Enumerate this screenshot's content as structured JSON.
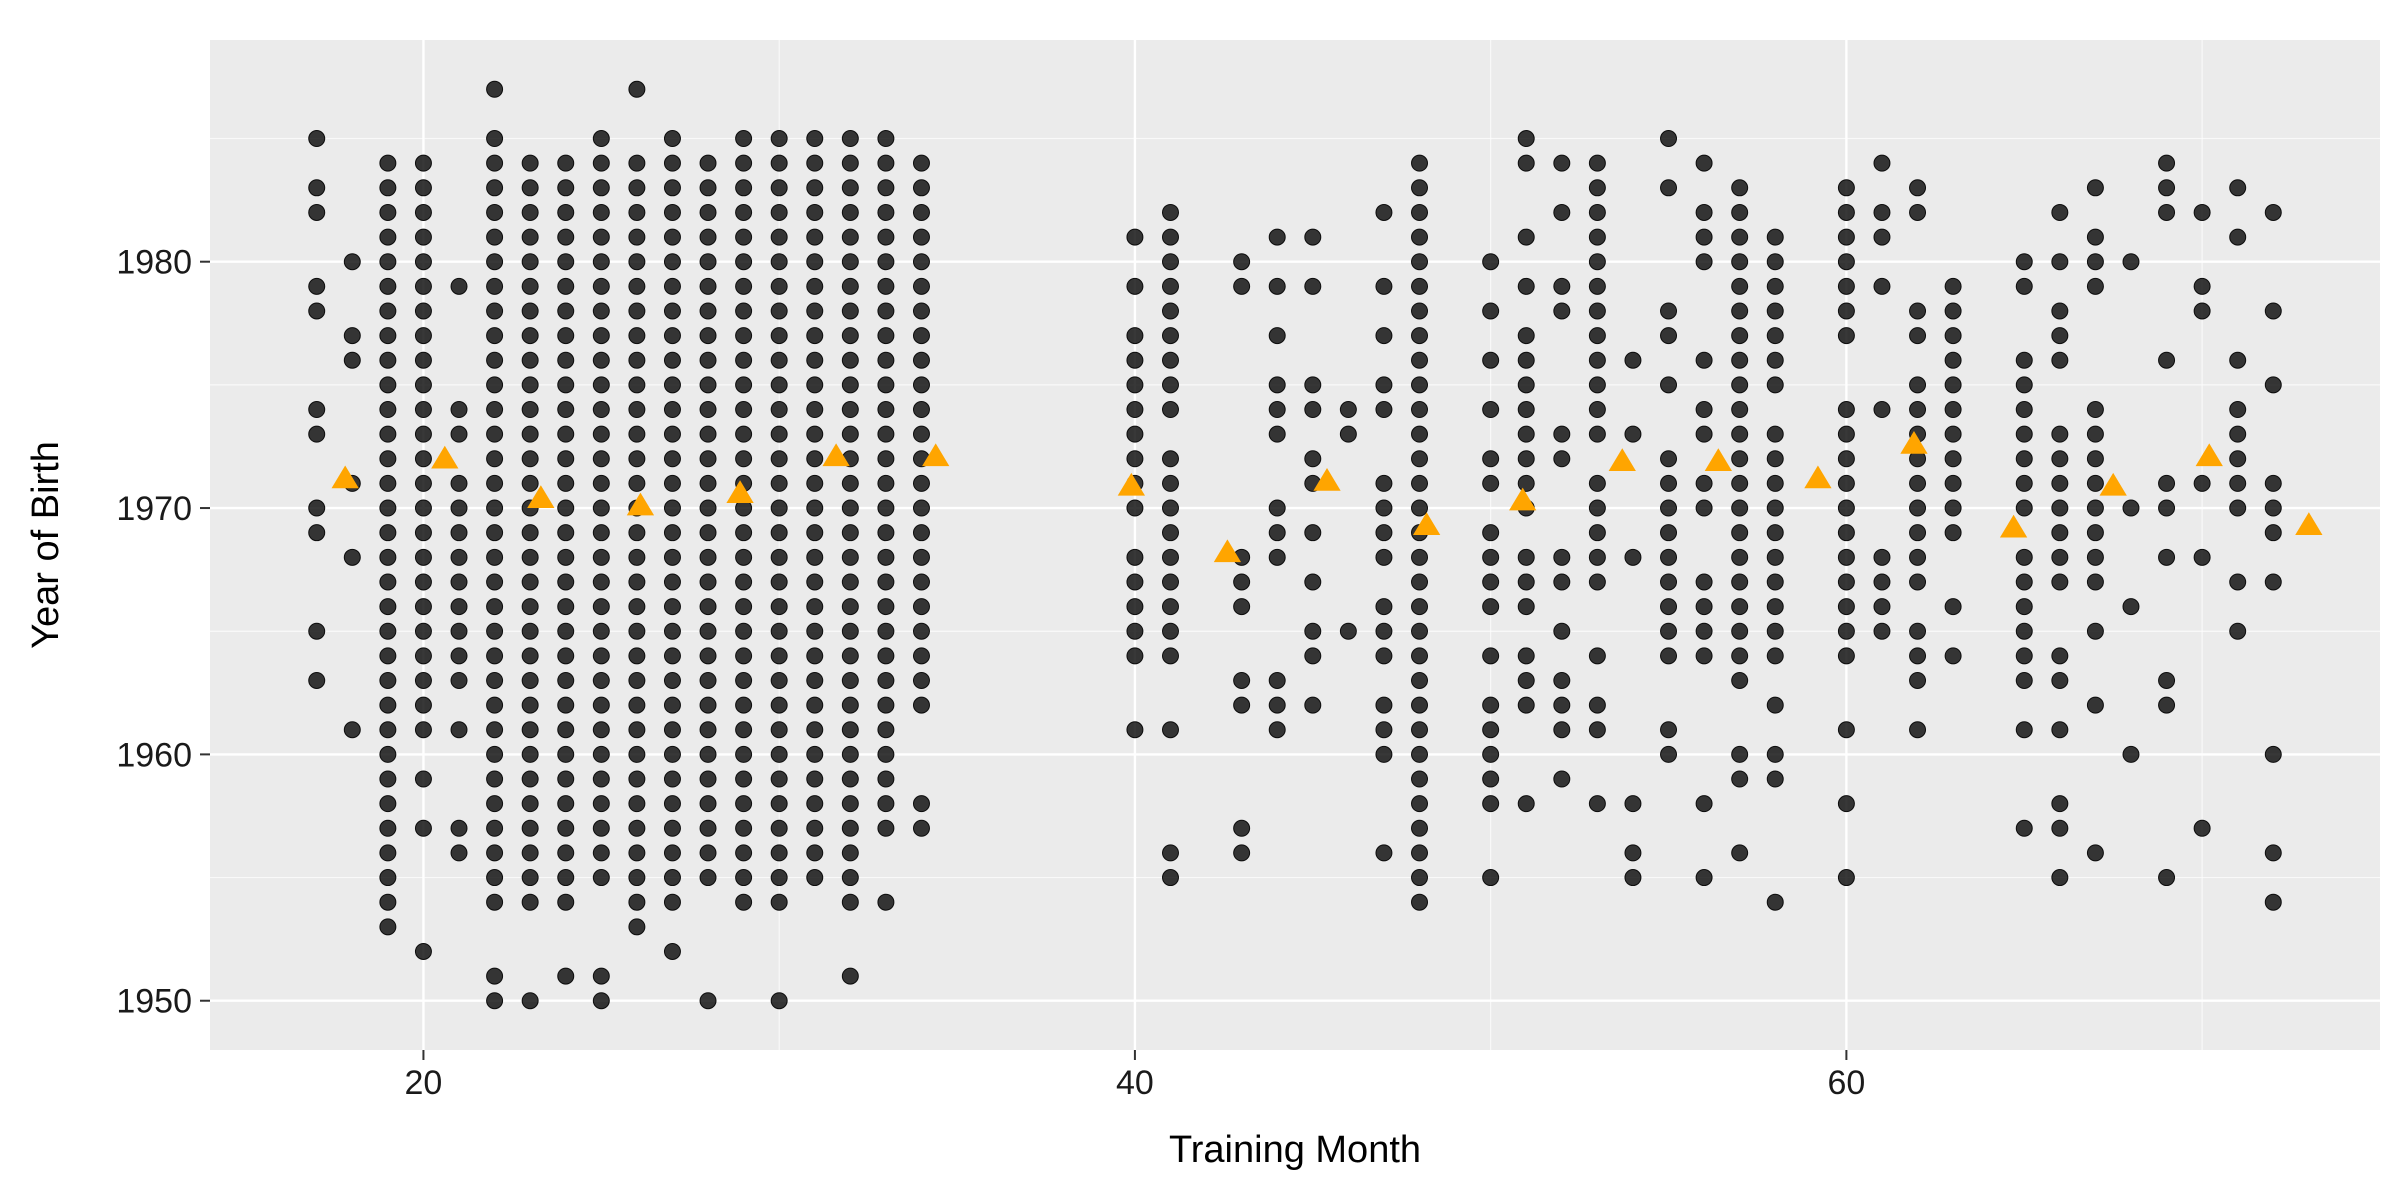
{
  "chart_data": {
    "type": "scatter",
    "xlabel": "Training Month",
    "ylabel": "Year of Birth",
    "xlim": [
      14,
      75
    ],
    "ylim": [
      1948,
      1989
    ],
    "x_major_ticks": [
      20,
      40,
      60
    ],
    "x_tick_labels": [
      "20",
      "40",
      "60"
    ],
    "y_major_ticks": [
      1950,
      1960,
      1970,
      1980
    ],
    "y_tick_labels": [
      "1950",
      "1960",
      "1970",
      "1980"
    ],
    "x_minor_ticks": [
      30,
      50,
      70
    ],
    "y_minor_ticks": [
      1955,
      1965,
      1975,
      1985
    ],
    "grid": true,
    "legend": "none",
    "colors": {
      "panel": "#ebebeb",
      "grid": "#ffffff",
      "points": "#000000",
      "means": "#ffa500"
    },
    "series": [
      {
        "marker": "circle",
        "columns": [
          {
            "x": 17,
            "y": [
              1985,
              1983,
              1982,
              1979,
              1978,
              1974,
              1973,
              1970,
              1969,
              1965,
              1963
            ]
          },
          {
            "x": 18,
            "y": [
              1980,
              1977,
              1976,
              1971,
              1968,
              1961
            ]
          },
          {
            "x": 19,
            "range": [
              1957,
              1984
            ],
            "extra": [
              1956,
              1955,
              1954,
              1953
            ]
          },
          {
            "x": 20,
            "range": [
              1961,
              1984
            ],
            "extra": [
              1959,
              1957,
              1952
            ]
          },
          {
            "x": 21,
            "y": [
              1979,
              1974,
              1973,
              1971,
              1970,
              1969,
              1968,
              1967,
              1966,
              1965,
              1964,
              1963,
              1961,
              1957,
              1956
            ]
          },
          {
            "x": 22,
            "range": [
              1954,
              1985
            ],
            "extra": [
              1987,
              1951,
              1950
            ]
          },
          {
            "x": 23,
            "range": [
              1954,
              1984
            ],
            "extra": [
              1950
            ]
          },
          {
            "x": 24,
            "range": [
              1954,
              1984
            ],
            "extra": [
              1951
            ]
          },
          {
            "x": 25,
            "range": [
              1955,
              1984
            ],
            "extra": [
              1985,
              1951,
              1950
            ]
          },
          {
            "x": 26,
            "range": [
              1955,
              1984
            ],
            "extra": [
              1987,
              1954,
              1953
            ]
          },
          {
            "x": 27,
            "range": [
              1954,
              1985
            ],
            "extra": [
              1952
            ]
          },
          {
            "x": 28,
            "range": [
              1955,
              1984
            ],
            "extra": [
              1950
            ]
          },
          {
            "x": 29,
            "range": [
              1954,
              1985
            ]
          },
          {
            "x": 30,
            "range": [
              1954,
              1985
            ],
            "extra": [
              1950
            ]
          },
          {
            "x": 31,
            "range": [
              1955,
              1985
            ]
          },
          {
            "x": 32,
            "range": [
              1954,
              1985
            ],
            "extra": [
              1951
            ]
          },
          {
            "x": 33,
            "range": [
              1957,
              1985
            ],
            "extra": [
              1954
            ]
          },
          {
            "x": 34,
            "range": [
              1962,
              1984
            ],
            "extra": [
              1958,
              1957
            ]
          },
          {
            "x": 40,
            "y": [
              1981,
              1979,
              1977,
              1976,
              1975,
              1974,
              1973,
              1972,
              1971,
              1970,
              1968,
              1967,
              1966,
              1965,
              1964,
              1961
            ]
          },
          {
            "x": 41,
            "y": [
              1982,
              1981,
              1980,
              1979,
              1978,
              1977,
              1976,
              1975,
              1974,
              1972,
              1971,
              1970,
              1969,
              1968,
              1967,
              1966,
              1965,
              1964,
              1961,
              1956,
              1955
            ]
          },
          {
            "x": 43,
            "y": [
              1980,
              1979,
              1968,
              1967,
              1966,
              1963,
              1962,
              1957,
              1956
            ]
          },
          {
            "x": 44,
            "y": [
              1981,
              1979,
              1977,
              1975,
              1974,
              1973,
              1970,
              1969,
              1968,
              1963,
              1962,
              1961
            ]
          },
          {
            "x": 45,
            "y": [
              1981,
              1979,
              1975,
              1974,
              1972,
              1971,
              1969,
              1967,
              1965,
              1964,
              1962
            ]
          },
          {
            "x": 46,
            "y": [
              1974,
              1973,
              1965
            ]
          },
          {
            "x": 47,
            "y": [
              1982,
              1979,
              1977,
              1975,
              1974,
              1971,
              1970,
              1969,
              1968,
              1966,
              1965,
              1964,
              1962,
              1961,
              1960,
              1956
            ]
          },
          {
            "x": 48,
            "range": [
              1954,
              1984
            ]
          },
          {
            "x": 50,
            "y": [
              1980,
              1978,
              1976,
              1974,
              1972,
              1971,
              1969,
              1968,
              1967,
              1966,
              1964,
              1962,
              1961,
              1960,
              1959,
              1958,
              1955
            ]
          },
          {
            "x": 51,
            "y": [
              1985,
              1984,
              1981,
              1979,
              1977,
              1976,
              1975,
              1974,
              1973,
              1972,
              1971,
              1970,
              1968,
              1967,
              1966,
              1964,
              1963,
              1962,
              1958
            ]
          },
          {
            "x": 52,
            "y": [
              1984,
              1982,
              1979,
              1978,
              1973,
              1972,
              1968,
              1967,
              1965,
              1963,
              1962,
              1961,
              1959
            ]
          },
          {
            "x": 53,
            "y": [
              1984,
              1983,
              1982,
              1981,
              1980,
              1979,
              1978,
              1977,
              1976,
              1975,
              1974,
              1973,
              1971,
              1970,
              1969,
              1968,
              1967,
              1964,
              1962,
              1961,
              1958
            ]
          },
          {
            "x": 54,
            "y": [
              1976,
              1973,
              1968,
              1958,
              1956,
              1955
            ]
          },
          {
            "x": 55,
            "y": [
              1985,
              1983,
              1978,
              1977,
              1975,
              1972,
              1971,
              1970,
              1969,
              1968,
              1967,
              1966,
              1965,
              1964,
              1961,
              1960
            ]
          },
          {
            "x": 56,
            "y": [
              1984,
              1982,
              1981,
              1980,
              1976,
              1974,
              1973,
              1971,
              1970,
              1967,
              1966,
              1965,
              1964,
              1958,
              1955
            ]
          },
          {
            "x": 57,
            "y": [
              1983,
              1982,
              1981,
              1980,
              1979,
              1978,
              1977,
              1976,
              1975,
              1974,
              1973,
              1972,
              1971,
              1970,
              1969,
              1968,
              1967,
              1966,
              1965,
              1964,
              1963,
              1960,
              1959,
              1956
            ]
          },
          {
            "x": 58,
            "y": [
              1981,
              1980,
              1979,
              1978,
              1977,
              1976,
              1975,
              1973,
              1972,
              1971,
              1970,
              1969,
              1968,
              1967,
              1966,
              1965,
              1964,
              1962,
              1960,
              1959,
              1954
            ]
          },
          {
            "x": 60,
            "y": [
              1983,
              1982,
              1981,
              1980,
              1979,
              1978,
              1977,
              1974,
              1973,
              1972,
              1971,
              1970,
              1969,
              1968,
              1967,
              1966,
              1965,
              1964,
              1961,
              1958,
              1955
            ]
          },
          {
            "x": 61,
            "y": [
              1984,
              1982,
              1981,
              1979,
              1974,
              1968,
              1967,
              1966,
              1965
            ]
          },
          {
            "x": 62,
            "y": [
              1983,
              1982,
              1978,
              1977,
              1975,
              1974,
              1973,
              1972,
              1971,
              1970,
              1969,
              1968,
              1967,
              1965,
              1964,
              1963,
              1961
            ]
          },
          {
            "x": 63,
            "y": [
              1979,
              1978,
              1977,
              1976,
              1975,
              1974,
              1973,
              1972,
              1971,
              1970,
              1969,
              1966,
              1964
            ]
          },
          {
            "x": 65,
            "y": [
              1980,
              1979,
              1976,
              1975,
              1974,
              1973,
              1972,
              1971,
              1970,
              1968,
              1967,
              1966,
              1965,
              1964,
              1963,
              1961,
              1957
            ]
          },
          {
            "x": 66,
            "y": [
              1982,
              1980,
              1978,
              1977,
              1976,
              1973,
              1972,
              1971,
              1970,
              1969,
              1968,
              1967,
              1964,
              1963,
              1961,
              1958,
              1957,
              1955
            ]
          },
          {
            "x": 67,
            "y": [
              1983,
              1981,
              1980,
              1979,
              1974,
              1973,
              1972,
              1971,
              1970,
              1969,
              1968,
              1967,
              1965,
              1962,
              1956
            ]
          },
          {
            "x": 68,
            "y": [
              1980,
              1970,
              1966,
              1960
            ]
          },
          {
            "x": 69,
            "y": [
              1984,
              1983,
              1982,
              1976,
              1971,
              1970,
              1968,
              1963,
              1962,
              1955
            ]
          },
          {
            "x": 70,
            "y": [
              1982,
              1979,
              1978,
              1971,
              1968,
              1957
            ]
          },
          {
            "x": 71,
            "y": [
              1983,
              1981,
              1976,
              1974,
              1973,
              1972,
              1971,
              1970,
              1967,
              1965
            ]
          },
          {
            "x": 72,
            "y": [
              1982,
              1978,
              1975,
              1971,
              1970,
              1969,
              1967,
              1960,
              1956,
              1954
            ]
          }
        ]
      },
      {
        "marker": "triangle",
        "points": [
          {
            "x": 17.8,
            "y": 1971.2
          },
          {
            "x": 20.6,
            "y": 1972.0
          },
          {
            "x": 23.3,
            "y": 1970.4
          },
          {
            "x": 26.1,
            "y": 1970.1
          },
          {
            "x": 28.9,
            "y": 1970.6
          },
          {
            "x": 31.6,
            "y": 1972.1
          },
          {
            "x": 34.4,
            "y": 1972.1
          },
          {
            "x": 39.9,
            "y": 1970.9
          },
          {
            "x": 42.6,
            "y": 1968.2
          },
          {
            "x": 45.4,
            "y": 1971.1
          },
          {
            "x": 48.2,
            "y": 1969.3
          },
          {
            "x": 50.9,
            "y": 1970.3
          },
          {
            "x": 53.7,
            "y": 1971.9
          },
          {
            "x": 56.4,
            "y": 1971.9
          },
          {
            "x": 59.2,
            "y": 1971.2
          },
          {
            "x": 61.9,
            "y": 1972.6
          },
          {
            "x": 64.7,
            "y": 1969.2
          },
          {
            "x": 67.5,
            "y": 1970.9
          },
          {
            "x": 70.2,
            "y": 1972.1
          },
          {
            "x": 73.0,
            "y": 1969.3
          }
        ]
      }
    ]
  }
}
